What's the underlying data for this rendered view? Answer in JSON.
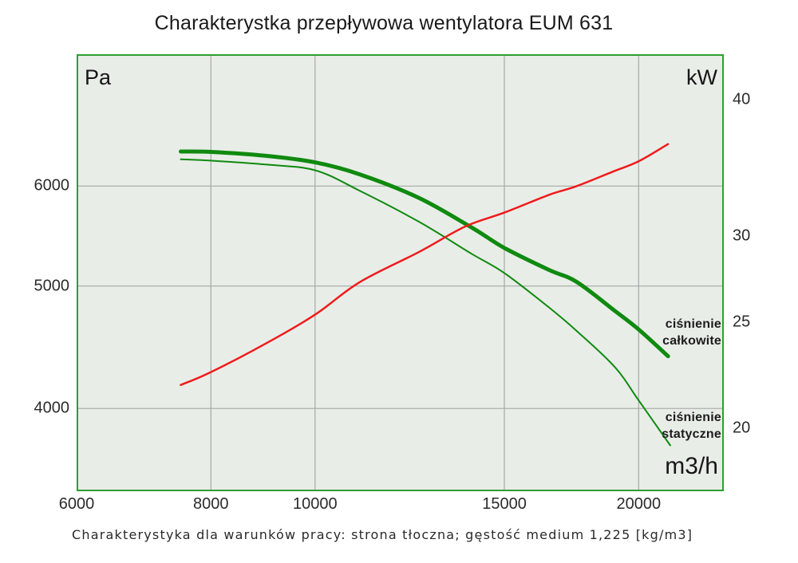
{
  "title": "Charakterystka przepływowa wentylatora EUM 631",
  "caption": "Charakterystyka dla warunków pracy: strona tłoczna; gęstość medium 1,225 [kg/m3]",
  "colors": {
    "plot_background": "#e9ede8",
    "plot_border": "#2f9e2f",
    "gridline": "#a6a8a6",
    "curve_green": "#0f8a0f",
    "curve_red": "#ee1b1b"
  },
  "chart_data": {
    "type": "line",
    "title": "Charakterystka przepływowa wentylatora EUM 631",
    "subtitle": "Charakterystyka dla warunków pracy: strona tłoczna; gęstość medium 1,225 [kg/m3]",
    "grid": "on",
    "x_axis": {
      "unit": "m3/h",
      "scale": "log",
      "min": 6000,
      "max": 24000,
      "ticks": [
        6000,
        8000,
        10000,
        15000,
        20000
      ],
      "tick_labels": [
        "6000",
        "8000",
        "10000",
        "15000",
        "20000"
      ]
    },
    "y_left": {
      "unit": "Pa",
      "scale": "log",
      "min": 3440,
      "max": 7630,
      "ticks": [
        6000,
        5000,
        4000
      ],
      "tick_labels": [
        "6000",
        "5000",
        "4000"
      ]
    },
    "y_right": {
      "unit": "kW",
      "scale": "log",
      "min": 17.5,
      "max": 44,
      "ticks": [
        40,
        30,
        25,
        20
      ],
      "tick_labels": [
        "40",
        "30",
        "25",
        "20"
      ]
    },
    "series": [
      {
        "key": "total-pressure-curve",
        "name": "ciśnienie całkowite",
        "label_line1": "ciśnienie",
        "label_line2": "całkowite",
        "axis": "left",
        "color_key": "curve_green",
        "stroke_width": 5,
        "points": [
          [
            7500,
            6390
          ],
          [
            8000,
            6385
          ],
          [
            9000,
            6340
          ],
          [
            10000,
            6265
          ],
          [
            11000,
            6130
          ],
          [
            12500,
            5870
          ],
          [
            14000,
            5560
          ],
          [
            15000,
            5360
          ],
          [
            16500,
            5150
          ],
          [
            17500,
            5040
          ],
          [
            19000,
            4780
          ],
          [
            20000,
            4620
          ],
          [
            21300,
            4400
          ]
        ]
      },
      {
        "key": "static-pressure-curve",
        "name": "ciśnienie statyczne",
        "label_line1": "ciśnienie",
        "label_line2": "statyczne",
        "axis": "left",
        "color_key": "curve_green",
        "stroke_width": 2,
        "points": [
          [
            7500,
            6300
          ],
          [
            8000,
            6285
          ],
          [
            9000,
            6240
          ],
          [
            10000,
            6175
          ],
          [
            11000,
            5950
          ],
          [
            12500,
            5620
          ],
          [
            14000,
            5300
          ],
          [
            15000,
            5120
          ],
          [
            16500,
            4810
          ],
          [
            17500,
            4610
          ],
          [
            19000,
            4315
          ],
          [
            20000,
            4060
          ],
          [
            21400,
            3740
          ]
        ]
      },
      {
        "key": "red-curve",
        "name": "",
        "axis": "right",
        "color_key": "curve_red",
        "stroke_width": 2.5,
        "points": [
          [
            7500,
            21.9
          ],
          [
            8000,
            22.5
          ],
          [
            9000,
            23.9
          ],
          [
            10000,
            25.4
          ],
          [
            11000,
            27.2
          ],
          [
            12500,
            29.0
          ],
          [
            13800,
            30.6
          ],
          [
            15000,
            31.5
          ],
          [
            16500,
            32.7
          ],
          [
            17500,
            33.3
          ],
          [
            19000,
            34.4
          ],
          [
            20000,
            35.1
          ],
          [
            21300,
            36.4
          ]
        ]
      }
    ]
  }
}
